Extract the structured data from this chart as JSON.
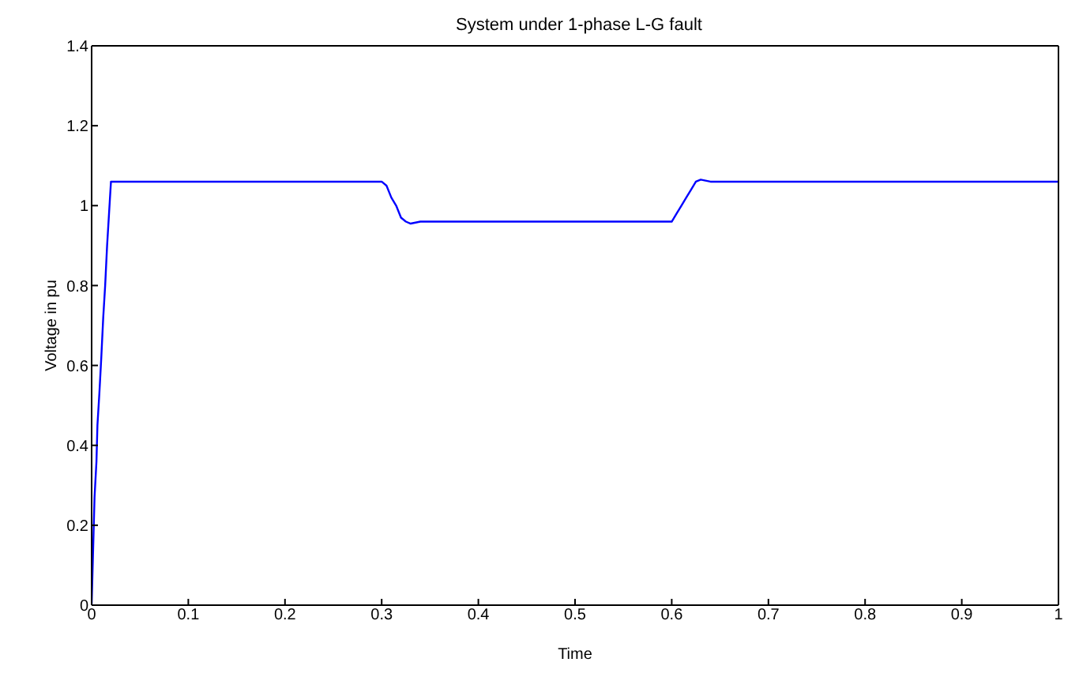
{
  "chart_data": {
    "type": "line",
    "title": "System under 1-phase L-G fault",
    "xlabel": "Time",
    "ylabel": "Voltage in pu",
    "x": [
      0,
      0.002,
      0.003,
      0.005,
      0.006,
      0.008,
      0.01,
      0.012,
      0.014,
      0.016,
      0.018,
      0.02,
      0.1,
      0.2,
      0.3,
      0.305,
      0.31,
      0.315,
      0.32,
      0.325,
      0.33,
      0.34,
      0.4,
      0.5,
      0.55,
      0.6,
      0.605,
      0.61,
      0.615,
      0.62,
      0.625,
      0.63,
      0.64,
      0.7,
      0.8,
      0.9,
      1
    ],
    "series": [
      {
        "color": "#0000ff",
        "values": [
          0,
          0.18,
          0.27,
          0.36,
          0.45,
          0.53,
          0.62,
          0.72,
          0.8,
          0.9,
          0.98,
          1.06,
          1.06,
          1.06,
          1.06,
          1.05,
          1.02,
          1.0,
          0.97,
          0.96,
          0.955,
          0.96,
          0.96,
          0.96,
          0.96,
          0.96,
          0.98,
          1.0,
          1.02,
          1.04,
          1.06,
          1.065,
          1.06,
          1.06,
          1.06,
          1.06,
          1.06
        ]
      }
    ],
    "xlim": [
      0,
      1
    ],
    "xticks": [
      0,
      0.1,
      0.2,
      0.3,
      0.4,
      0.5,
      0.6,
      0.7,
      0.8,
      0.9,
      1
    ],
    "ylim": [
      0,
      1.4
    ],
    "yticks": [
      0,
      0.2,
      0.4,
      0.6,
      0.8,
      1,
      1.2,
      1.4
    ],
    "grid": false,
    "legend": false,
    "marker": "none",
    "line_style": "solid"
  }
}
